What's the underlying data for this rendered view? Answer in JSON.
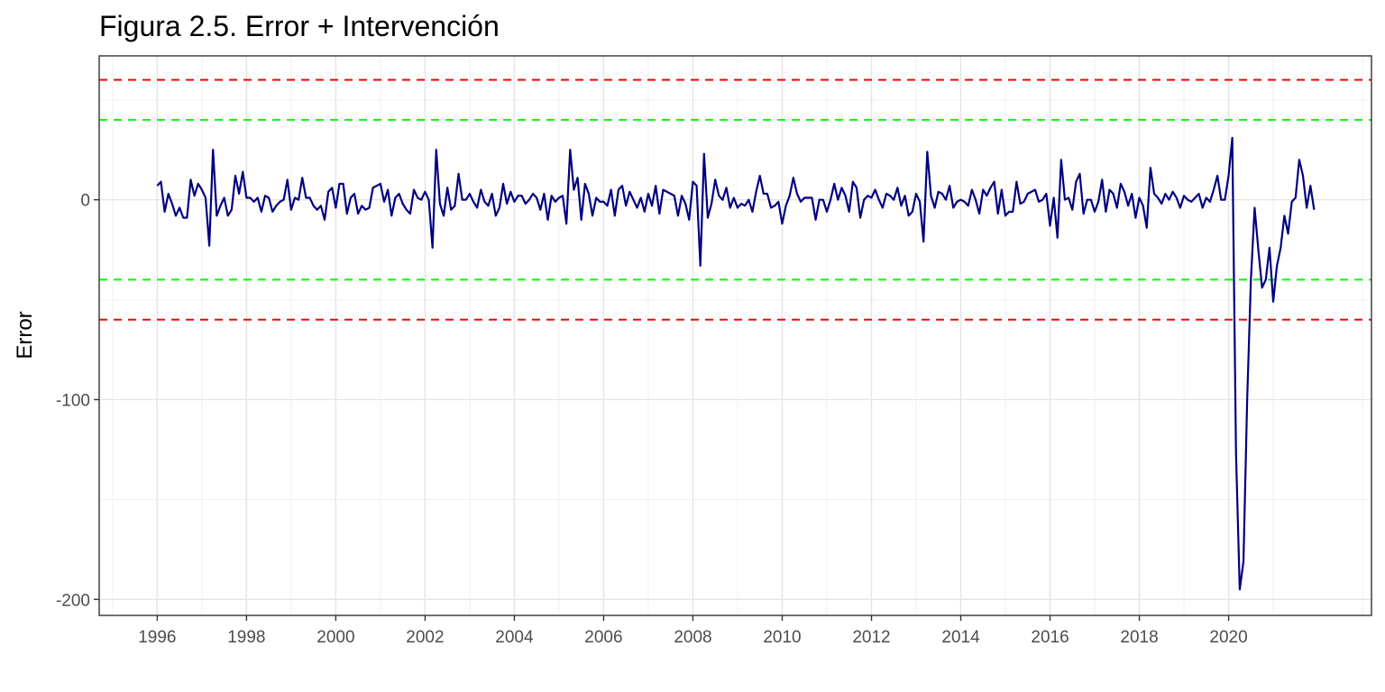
{
  "chart_data": {
    "type": "line",
    "title": "Figura 2.5. Error + Intervención",
    "xlabel": "",
    "ylabel": "Error",
    "xlim": [
      1994.7,
      2023.2
    ],
    "ylim": [
      -208,
      72
    ],
    "x_ticks": [
      1996,
      1998,
      2000,
      2002,
      2004,
      2006,
      2008,
      2010,
      2012,
      2014,
      2016,
      2018,
      2020
    ],
    "x_tick_labels": [
      "1996",
      "1998",
      "2000",
      "2002",
      "2004",
      "2006",
      "2008",
      "2010",
      "2012",
      "2014",
      "2016",
      "2018",
      "2020"
    ],
    "y_ticks": [
      0,
      -100,
      -200
    ],
    "y_tick_labels": [
      "0",
      "-100",
      "-200"
    ],
    "grid": true,
    "series": [
      {
        "color": "#00007f",
        "x_start": 1996.0,
        "x_step": 0.08333,
        "values": [
          7,
          9,
          -6,
          3,
          -2,
          -8,
          -4,
          -9,
          -9,
          10,
          2,
          8,
          5,
          1,
          -23,
          25,
          -8,
          -3,
          1,
          -8,
          -5,
          12,
          3,
          14,
          1,
          1,
          -1,
          1,
          -6,
          2,
          1,
          -6,
          -3,
          -1,
          0,
          10,
          -5,
          1,
          0,
          11,
          1,
          1,
          -3,
          -5,
          -3,
          -10,
          4,
          6,
          -4,
          8,
          8,
          -7,
          1,
          3,
          -7,
          -3,
          -5,
          -4,
          6,
          7,
          8,
          -1,
          5,
          -8,
          1,
          3,
          -2,
          -5,
          -7,
          5,
          1,
          0,
          4,
          0,
          -24,
          25,
          -2,
          -8,
          6,
          -5,
          -3,
          13,
          0,
          0,
          3,
          -1,
          -4,
          5,
          -1,
          -3,
          3,
          -8,
          -4,
          8,
          -2,
          4,
          -1,
          2,
          2,
          -2,
          0,
          3,
          1,
          -5,
          3,
          -10,
          2,
          -1,
          1,
          2,
          -12,
          25,
          5,
          11,
          -10,
          8,
          3,
          -8,
          1,
          -1,
          -1,
          -3,
          5,
          -8,
          5,
          7,
          -3,
          4,
          0,
          -4,
          1,
          -6,
          3,
          -3,
          7,
          -7,
          5,
          4,
          3,
          2,
          -8,
          2,
          -2,
          -10,
          9,
          7,
          -33,
          23,
          -9,
          -2,
          10,
          2,
          0,
          6,
          -4,
          1,
          -4,
          -2,
          -3,
          0,
          -6,
          4,
          12,
          3,
          3,
          -4,
          -3,
          -1,
          -12,
          -3,
          2,
          11,
          3,
          -1,
          1,
          1,
          1,
          -10,
          0,
          0,
          -6,
          0,
          8,
          0,
          6,
          2,
          -6,
          9,
          6,
          -9,
          0,
          2,
          1,
          5,
          0,
          -4,
          3,
          2,
          0,
          6,
          -3,
          2,
          -8,
          -6,
          3,
          -1,
          -21,
          24,
          2,
          -4,
          4,
          3,
          0,
          7,
          -4,
          -1,
          0,
          -1,
          -3,
          5,
          0,
          -7,
          5,
          2,
          6,
          9,
          -7,
          5,
          -8,
          -6,
          -6,
          9,
          -2,
          -1,
          3,
          4,
          5,
          -1,
          0,
          3,
          -13,
          1,
          -19,
          20,
          0,
          1,
          -5,
          9,
          13,
          -7,
          0,
          0,
          -6,
          -1,
          10,
          -6,
          5,
          3,
          -4,
          8,
          4,
          -3,
          3,
          -9,
          1,
          -3,
          -14,
          16,
          3,
          1,
          -2,
          3,
          0,
          4,
          1,
          -4,
          2,
          0,
          -1,
          1,
          3,
          -4,
          1,
          -1,
          5,
          12,
          0,
          0,
          12,
          31,
          -127,
          -195,
          -181,
          -100,
          -40,
          -4,
          -25,
          -44,
          -40,
          -24,
          -51,
          -33,
          -24,
          -8,
          -17,
          -1,
          1,
          20,
          12,
          -4,
          7,
          -5
        ]
      }
    ],
    "reference_lines": [
      {
        "y": 60,
        "color": "#ff0000",
        "style": "dashed"
      },
      {
        "y": 40,
        "color": "#00ff00",
        "style": "dashed"
      },
      {
        "y": -40,
        "color": "#00ff00",
        "style": "dashed"
      },
      {
        "y": -60,
        "color": "#ff0000",
        "style": "dashed"
      }
    ]
  }
}
